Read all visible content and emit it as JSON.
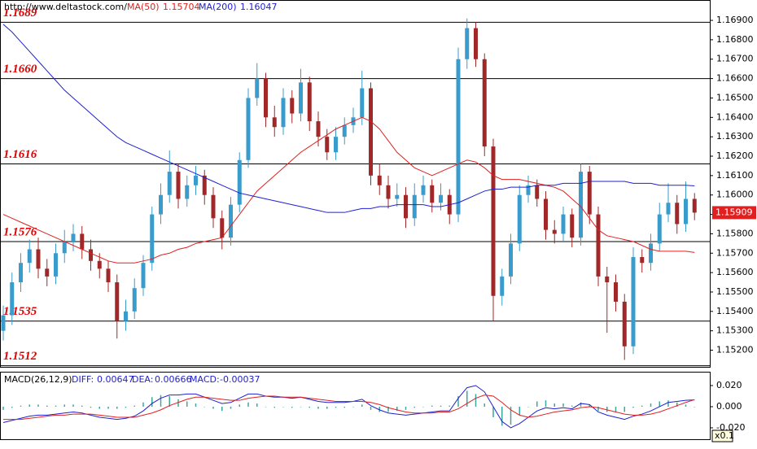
{
  "chart_data": [
    {
      "type": "candlestick",
      "source": "http://www.deltastock.com/",
      "open": [
        1.153,
        1.1538,
        1.1555,
        1.1565,
        1.1572,
        1.1562,
        1.1558,
        1.157,
        1.1576,
        1.158,
        1.1572,
        1.1566,
        1.1562,
        1.1555,
        1.1535,
        1.154,
        1.1552,
        1.1565,
        1.159,
        1.16,
        1.1612,
        1.1598,
        1.1605,
        1.161,
        1.16,
        1.1588,
        1.1578,
        1.1595,
        1.1618,
        1.165,
        1.166,
        1.164,
        1.1635,
        1.165,
        1.1642,
        1.1658,
        1.1638,
        1.163,
        1.1622,
        1.163,
        1.1636,
        1.164,
        1.1655,
        1.161,
        1.1605,
        1.1598,
        1.16,
        1.1588,
        1.16,
        1.1605,
        1.1596,
        1.16,
        1.159,
        1.167,
        1.1686,
        1.167,
        1.1625,
        1.1548,
        1.1558,
        1.1575,
        1.16,
        1.1605,
        1.1598,
        1.1582,
        1.158,
        1.159,
        1.1578,
        1.1612,
        1.159,
        1.1558,
        1.1555,
        1.1545,
        1.1522,
        1.1568,
        1.1565,
        1.1575,
        1.159,
        1.1596,
        1.1585,
        1.1598
      ],
      "high": [
        1.1543,
        1.156,
        1.157,
        1.1577,
        1.1578,
        1.1567,
        1.1575,
        1.1582,
        1.1585,
        1.1584,
        1.1577,
        1.157,
        1.1566,
        1.1559,
        1.1546,
        1.1557,
        1.1569,
        1.1594,
        1.1606,
        1.1623,
        1.1616,
        1.161,
        1.1615,
        1.1613,
        1.1604,
        1.1592,
        1.1599,
        1.1622,
        1.1655,
        1.1668,
        1.1663,
        1.1646,
        1.1655,
        1.1654,
        1.1665,
        1.1661,
        1.1643,
        1.1634,
        1.1635,
        1.164,
        1.1645,
        1.1664,
        1.1658,
        1.1616,
        1.161,
        1.1606,
        1.1604,
        1.1606,
        1.161,
        1.1608,
        1.1606,
        1.1603,
        1.1676,
        1.1691,
        1.1689,
        1.1673,
        1.1629,
        1.1562,
        1.158,
        1.1605,
        1.161,
        1.1608,
        1.1602,
        1.1587,
        1.1594,
        1.1593,
        1.1616,
        1.1615,
        1.1594,
        1.1563,
        1.1559,
        1.1549,
        1.1573,
        1.1572,
        1.158,
        1.1596,
        1.1606,
        1.16,
        1.1607,
        1.1601
      ],
      "low": [
        1.1525,
        1.1533,
        1.155,
        1.156,
        1.1557,
        1.1553,
        1.1554,
        1.1565,
        1.1571,
        1.1567,
        1.1561,
        1.1557,
        1.155,
        1.1526,
        1.153,
        1.1536,
        1.1548,
        1.1561,
        1.1585,
        1.1596,
        1.1593,
        1.1594,
        1.16,
        1.1595,
        1.1583,
        1.1572,
        1.1574,
        1.1591,
        1.1614,
        1.1646,
        1.1635,
        1.163,
        1.1631,
        1.1637,
        1.1638,
        1.1633,
        1.1625,
        1.1618,
        1.1618,
        1.1626,
        1.1632,
        1.1636,
        1.1605,
        1.16,
        1.1593,
        1.1594,
        1.1583,
        1.1584,
        1.1596,
        1.1591,
        1.1592,
        1.1585,
        1.1586,
        1.1665,
        1.1666,
        1.162,
        1.1535,
        1.1543,
        1.1554,
        1.1571,
        1.1596,
        1.1594,
        1.1577,
        1.1575,
        1.1576,
        1.1573,
        1.1574,
        1.1585,
        1.1553,
        1.1529,
        1.154,
        1.1515,
        1.1518,
        1.156,
        1.1561,
        1.1571,
        1.1586,
        1.158,
        1.1581,
        1.1587
      ],
      "close": [
        1.1538,
        1.1555,
        1.1565,
        1.1572,
        1.1562,
        1.1558,
        1.157,
        1.1576,
        1.158,
        1.1572,
        1.1566,
        1.1562,
        1.1555,
        1.1535,
        1.154,
        1.1552,
        1.1565,
        1.159,
        1.16,
        1.1612,
        1.1598,
        1.1605,
        1.161,
        1.16,
        1.1588,
        1.1578,
        1.1595,
        1.1618,
        1.165,
        1.166,
        1.164,
        1.1635,
        1.165,
        1.1642,
        1.1658,
        1.1638,
        1.163,
        1.1622,
        1.163,
        1.1636,
        1.164,
        1.1655,
        1.161,
        1.1605,
        1.1598,
        1.16,
        1.1588,
        1.16,
        1.1605,
        1.1596,
        1.16,
        1.159,
        1.167,
        1.1686,
        1.167,
        1.1625,
        1.1548,
        1.1558,
        1.1575,
        1.16,
        1.1605,
        1.1598,
        1.1582,
        1.158,
        1.159,
        1.1578,
        1.1612,
        1.159,
        1.1558,
        1.1555,
        1.1545,
        1.1522,
        1.1568,
        1.1565,
        1.1575,
        1.159,
        1.1596,
        1.1585,
        1.1598,
        1.15909
      ],
      "up_color": "#3a9ccc",
      "down_color": "#a02828",
      "series": [
        {
          "name": "MA(50)",
          "color": "#e02020",
          "values": [
            1.159,
            1.1588,
            1.1586,
            1.1584,
            1.1582,
            1.158,
            1.1578,
            1.1576,
            1.1574,
            1.1572,
            1.157,
            1.1568,
            1.1566,
            1.1565,
            1.1565,
            1.1565,
            1.1566,
            1.1567,
            1.1569,
            1.157,
            1.1572,
            1.1573,
            1.1575,
            1.1576,
            1.1577,
            1.1578,
            1.1584,
            1.159,
            1.1596,
            1.1602,
            1.1606,
            1.161,
            1.1614,
            1.1618,
            1.1622,
            1.1625,
            1.1628,
            1.1631,
            1.1634,
            1.1636,
            1.1638,
            1.164,
            1.1638,
            1.1634,
            1.1628,
            1.1622,
            1.1618,
            1.1614,
            1.1612,
            1.161,
            1.1612,
            1.1614,
            1.1616,
            1.1618,
            1.1617,
            1.1614,
            1.161,
            1.1608,
            1.1608,
            1.1608,
            1.1607,
            1.1606,
            1.1605,
            1.1604,
            1.1602,
            1.1598,
            1.1594,
            1.1588,
            1.1582,
            1.1579,
            1.1578,
            1.1577,
            1.1576,
            1.1574,
            1.1572,
            1.1571,
            1.1571,
            1.1571,
            1.1571,
            1.15704
          ]
        },
        {
          "name": "MA(200)",
          "color": "#2020d0",
          "values": [
            1.1688,
            1.1684,
            1.1679,
            1.1674,
            1.1669,
            1.1664,
            1.1659,
            1.1654,
            1.165,
            1.1646,
            1.1642,
            1.1638,
            1.1634,
            1.163,
            1.1627,
            1.1625,
            1.1623,
            1.1621,
            1.1619,
            1.1617,
            1.1615,
            1.1613,
            1.1611,
            1.1609,
            1.1607,
            1.1605,
            1.1603,
            1.1601,
            1.16,
            1.1599,
            1.1598,
            1.1597,
            1.1596,
            1.1595,
            1.1594,
            1.1593,
            1.1592,
            1.1591,
            1.1591,
            1.1591,
            1.1592,
            1.1593,
            1.1593,
            1.1594,
            1.1594,
            1.1595,
            1.1595,
            1.1595,
            1.1595,
            1.1594,
            1.1594,
            1.1595,
            1.1596,
            1.1598,
            1.16,
            1.1602,
            1.1603,
            1.1603,
            1.1604,
            1.1604,
            1.1604,
            1.1605,
            1.1605,
            1.1605,
            1.1606,
            1.1606,
            1.1606,
            1.1607,
            1.1607,
            1.1607,
            1.1607,
            1.1607,
            1.1606,
            1.1606,
            1.1606,
            1.1605,
            1.1605,
            1.1605,
            1.1605,
            1.16047
          ]
        }
      ],
      "ylim": [
        1.1511,
        1.17005
      ],
      "yticks": [
        {
          "value": 1.152,
          "label": "1.15200"
        },
        {
          "value": 1.153,
          "label": "1.15300"
        },
        {
          "value": 1.154,
          "label": "1.15400"
        },
        {
          "value": 1.155,
          "label": "1.15500"
        },
        {
          "value": 1.156,
          "label": "1.15600"
        },
        {
          "value": 1.157,
          "label": "1.15700"
        },
        {
          "value": 1.158,
          "label": "1.15800"
        },
        {
          "value": 1.159,
          "label": "1.15900"
        },
        {
          "value": 1.16,
          "label": "1.16000"
        },
        {
          "value": 1.161,
          "label": "1.16100"
        },
        {
          "value": 1.162,
          "label": "1.16200"
        },
        {
          "value": 1.163,
          "label": "1.16300"
        },
        {
          "value": 1.164,
          "label": "1.16400"
        },
        {
          "value": 1.165,
          "label": "1.16500"
        },
        {
          "value": 1.166,
          "label": "1.16600"
        },
        {
          "value": 1.167,
          "label": "1.16700"
        },
        {
          "value": 1.168,
          "label": "1.16800"
        },
        {
          "value": 1.169,
          "label": "1.16900"
        }
      ],
      "levels": [
        1.1689,
        {
          "value": 1.166,
          "label": "1.1660"
        },
        1.1616,
        1.1576,
        1.1535,
        1.1512
      ],
      "level_color": "#e00000"
    },
    {
      "type": "macd",
      "title": "MACD(26,12,9)",
      "scale_note": "x0.1",
      "series": [
        {
          "name": "DIFF:",
          "color": "#2020d0",
          "values": [
            -0.015,
            -0.013,
            -0.011,
            -0.009,
            -0.008,
            -0.008,
            -0.007,
            -0.006,
            -0.005,
            -0.006,
            -0.008,
            -0.01,
            -0.011,
            -0.012,
            -0.011,
            -0.009,
            -0.004,
            0.003,
            0.008,
            0.011,
            0.011,
            0.012,
            0.012,
            0.009,
            0.006,
            0.003,
            0.004,
            0.008,
            0.012,
            0.012,
            0.01,
            0.009,
            0.009,
            0.008,
            0.009,
            0.007,
            0.005,
            0.004,
            0.004,
            0.004,
            0.005,
            0.007,
            0.001,
            -0.003,
            -0.006,
            -0.007,
            -0.008,
            -0.007,
            -0.006,
            -0.005,
            -0.004,
            -0.004,
            0.008,
            0.018,
            0.02,
            0.014,
            0.0,
            -0.014,
            -0.02,
            -0.016,
            -0.01,
            -0.004,
            -0.001,
            -0.002,
            -0.001,
            -0.002,
            0.003,
            0.002,
            -0.005,
            -0.008,
            -0.01,
            -0.012,
            -0.009,
            -0.007,
            -0.004,
            0.0,
            0.004,
            0.005,
            0.006,
            0.00647
          ]
        },
        {
          "name": "DEA:",
          "color": "#e02020",
          "values": [
            -0.012,
            -0.012,
            -0.012,
            -0.011,
            -0.01,
            -0.009,
            -0.008,
            -0.008,
            -0.007,
            -0.007,
            -0.007,
            -0.008,
            -0.009,
            -0.01,
            -0.01,
            -0.01,
            -0.008,
            -0.006,
            -0.003,
            0.001,
            0.004,
            0.007,
            0.009,
            0.009,
            0.008,
            0.007,
            0.006,
            0.006,
            0.008,
            0.009,
            0.01,
            0.01,
            0.009,
            0.009,
            0.009,
            0.008,
            0.007,
            0.006,
            0.005,
            0.005,
            0.005,
            0.005,
            0.004,
            0.002,
            -0.001,
            -0.003,
            -0.005,
            -0.006,
            -0.006,
            -0.006,
            -0.005,
            -0.005,
            -0.002,
            0.003,
            0.008,
            0.011,
            0.01,
            0.004,
            -0.003,
            -0.008,
            -0.01,
            -0.009,
            -0.007,
            -0.005,
            -0.004,
            -0.003,
            -0.001,
            0.0,
            -0.001,
            -0.003,
            -0.005,
            -0.007,
            -0.008,
            -0.008,
            -0.007,
            -0.005,
            -0.002,
            0.001,
            0.004,
            0.00666
          ]
        }
      ],
      "histogram": {
        "name": "MACD:",
        "color": "#3aa8a0",
        "values": [
          -0.003,
          -0.001,
          0.001,
          0.002,
          0.002,
          0.001,
          0.001,
          0.002,
          0.002,
          0.001,
          -0.001,
          -0.002,
          -0.002,
          -0.002,
          -0.001,
          0.001,
          0.004,
          0.009,
          0.011,
          0.01,
          0.007,
          0.005,
          0.003,
          0.0,
          -0.002,
          -0.004,
          -0.002,
          0.002,
          0.004,
          0.003,
          0.0,
          -0.001,
          0.0,
          -0.001,
          0.0,
          -0.001,
          -0.002,
          -0.002,
          -0.001,
          -0.001,
          0.0,
          0.002,
          -0.003,
          -0.005,
          -0.005,
          -0.004,
          -0.003,
          -0.001,
          0.0,
          0.001,
          0.001,
          0.001,
          0.01,
          0.015,
          0.012,
          0.003,
          -0.01,
          -0.018,
          -0.017,
          -0.008,
          0.0,
          0.005,
          0.006,
          0.003,
          0.003,
          0.001,
          0.004,
          0.002,
          -0.004,
          -0.005,
          -0.005,
          -0.005,
          -0.001,
          0.001,
          0.003,
          0.005,
          0.006,
          0.004,
          0.002,
          -0.00037
        ]
      },
      "ylim": [
        -0.0308,
        0.0323
      ],
      "yticks": [
        {
          "value": 0.02,
          "label": "0.020"
        },
        {
          "value": 0,
          "label": "0.000"
        },
        {
          "value": -0.02,
          "label": "-0.020"
        }
      ]
    }
  ]
}
